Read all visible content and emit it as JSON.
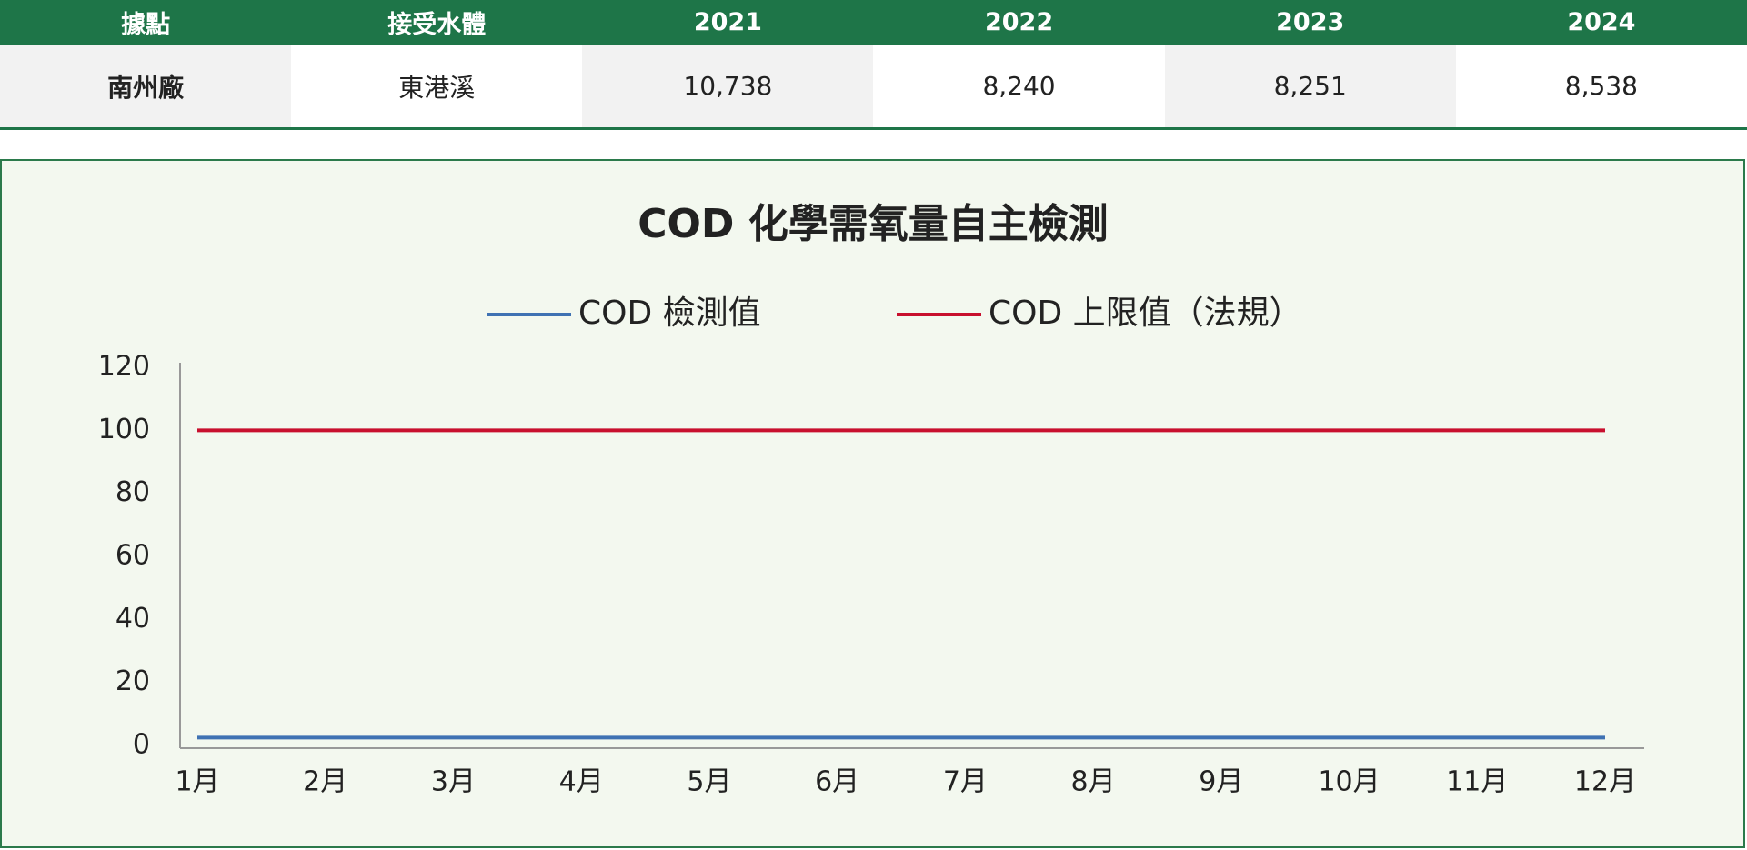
{
  "table": {
    "header": [
      "據點",
      "接受水體",
      "2021",
      "2022",
      "2023",
      "2024"
    ],
    "rows": [
      [
        "南州廠",
        "東港溪",
        "10,738",
        "8,240",
        "8,251",
        "8,538"
      ]
    ]
  },
  "chart_data": {
    "type": "line",
    "title": "COD 化學需氧量自主檢測",
    "categories": [
      "1月",
      "2月",
      "3月",
      "4月",
      "5月",
      "6月",
      "7月",
      "8月",
      "9月",
      "10月",
      "11月",
      "12月"
    ],
    "series": [
      {
        "name": "COD 檢測值",
        "color": "#3f72b3",
        "values": [
          2.5,
          2.5,
          2.5,
          2.5,
          2.5,
          2.5,
          2.5,
          2.5,
          2.5,
          2.5,
          2.5,
          2.5
        ]
      },
      {
        "name": "COD 上限值（法規）",
        "color": "#c8102e",
        "values": [
          100,
          100,
          100,
          100,
          100,
          100,
          100,
          100,
          100,
          100,
          100,
          100
        ]
      }
    ],
    "ylim": [
      0,
      120
    ],
    "yticks": [
      0,
      20,
      40,
      60,
      80,
      100,
      120
    ],
    "grid": false
  }
}
